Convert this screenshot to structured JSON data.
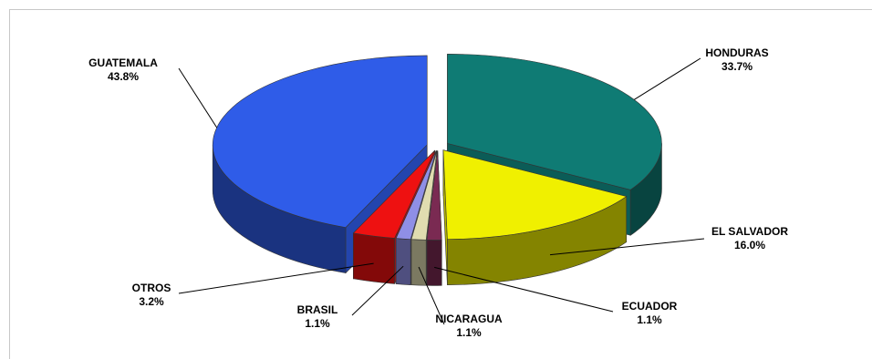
{
  "chart_data": {
    "type": "pie",
    "variant": "3d-exploded",
    "title": "",
    "legend": "none",
    "slices": [
      {
        "label": "HONDURAS",
        "value": 33.7,
        "value_label": "33.7%",
        "color": "#0f7b74"
      },
      {
        "label": "EL SALVADOR",
        "value": 16.0,
        "value_label": "16.0%",
        "color": "#f0f000"
      },
      {
        "label": "ECUADOR",
        "value": 1.1,
        "value_label": "1.1%",
        "color": "#7a2a52"
      },
      {
        "label": "NICARAGUA",
        "value": 1.1,
        "value_label": "1.1%",
        "color": "#e0dcb0"
      },
      {
        "label": "BRASIL",
        "value": 1.1,
        "value_label": "1.1%",
        "color": "#8f8fe6"
      },
      {
        "label": "OTROS",
        "value": 3.2,
        "value_label": "3.2%",
        "color": "#ee1111"
      },
      {
        "label": "GUATEMALA",
        "value": 43.8,
        "value_label": "43.8%",
        "color": "#2f5ce8"
      }
    ]
  }
}
